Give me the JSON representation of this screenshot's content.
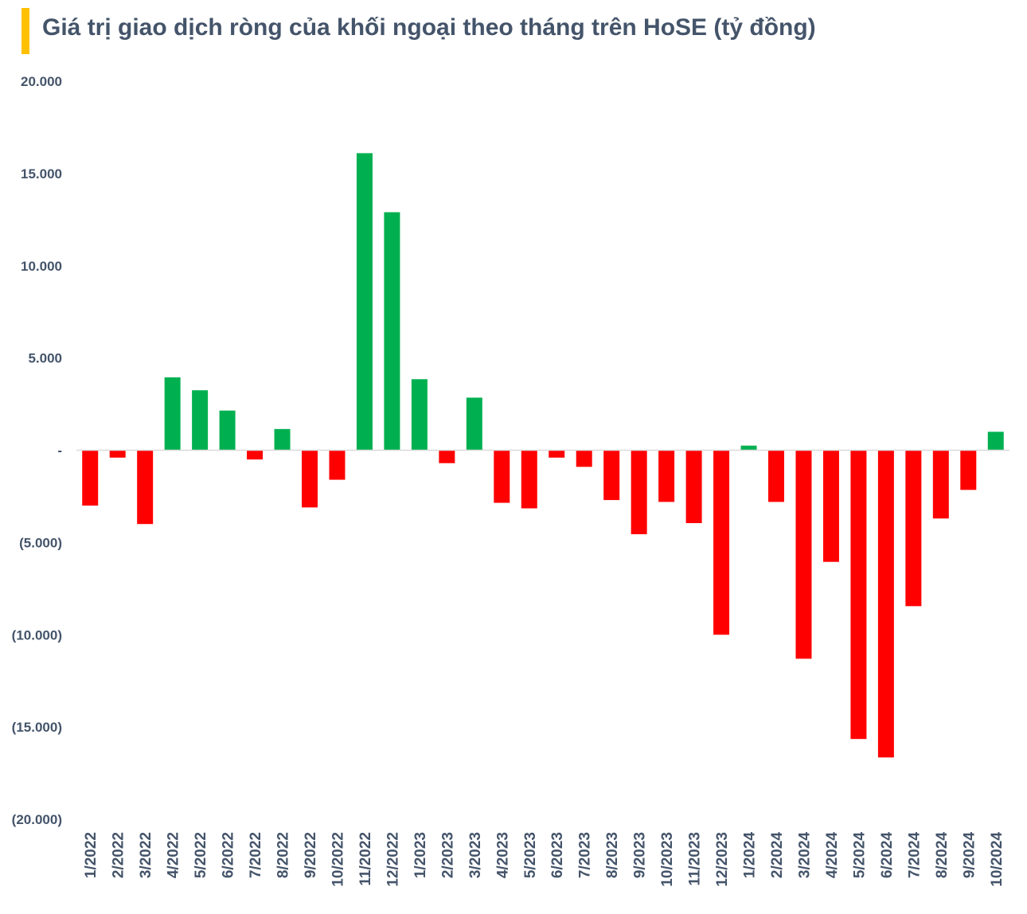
{
  "title": "Giá trị giao dịch ròng của khối ngoại theo tháng trên HoSE (tỷ đồng)",
  "colors": {
    "accent": "#ffc000",
    "positive": "#00b050",
    "negative": "#ff0000",
    "text": "#44546a",
    "zero_line": "#d9d9d9"
  },
  "chart_data": {
    "type": "bar",
    "title": "Giá trị giao dịch ròng của khối ngoại theo tháng trên HoSE (tỷ đồng)",
    "xlabel": "",
    "ylabel": "",
    "ylim": [
      -20000,
      20000
    ],
    "grid": false,
    "yticks": [
      20000,
      15000,
      10000,
      5000,
      0,
      -5000,
      -10000,
      -15000,
      -20000
    ],
    "ytick_labels": [
      "20.000",
      "15.000",
      "10.000",
      "5.000",
      "-",
      "(5.000)",
      "(10.000)",
      "(15.000)",
      "(20.000)"
    ],
    "categories": [
      "1/2022",
      "2/2022",
      "3/2022",
      "4/2022",
      "5/2022",
      "6/2022",
      "7/2022",
      "8/2022",
      "9/2022",
      "10/2022",
      "11/2022",
      "12/2022",
      "1/2023",
      "2/2023",
      "3/2023",
      "4/2023",
      "5/2023",
      "6/2023",
      "7/2023",
      "8/2023",
      "9/2023",
      "10/2023",
      "11/2023",
      "12/2023",
      "1/2024",
      "2/2024",
      "3/2024",
      "4/2024",
      "5/2024",
      "6/2024",
      "7/2024",
      "8/2024",
      "9/2024",
      "10/2024"
    ],
    "values": [
      -3000,
      -400,
      -4000,
      3950,
      3250,
      2150,
      -500,
      1150,
      -3100,
      -1600,
      16100,
      12900,
      3850,
      -700,
      2850,
      -2850,
      -3150,
      -400,
      -900,
      -2700,
      -4550,
      -2800,
      -3950,
      -10000,
      250,
      -2800,
      -11300,
      -6050,
      -15650,
      -16650,
      -8450,
      -3700,
      -2150,
      1000
    ]
  }
}
